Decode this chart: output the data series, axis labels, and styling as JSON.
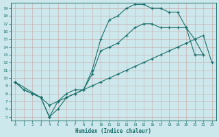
{
  "xlabel": "Humidex (Indice chaleur)",
  "bg_color": "#cde8ec",
  "line_color": "#1a6e6a",
  "grid_color": "#b8d8dc",
  "xlim_min": -0.5,
  "xlim_max": 23.5,
  "ylim_min": 4.5,
  "ylim_max": 19.7,
  "xticks": [
    0,
    1,
    2,
    3,
    4,
    5,
    6,
    7,
    8,
    9,
    10,
    11,
    12,
    13,
    14,
    15,
    16,
    17,
    18,
    19,
    20,
    21,
    22,
    23
  ],
  "yticks": [
    5,
    6,
    7,
    8,
    9,
    10,
    11,
    12,
    13,
    14,
    15,
    16,
    17,
    18,
    19
  ],
  "line1_x": [
    0,
    1,
    2,
    3,
    4,
    5,
    6,
    7,
    8,
    9,
    10,
    11,
    12,
    13,
    14,
    15,
    16,
    17,
    18,
    19,
    20,
    21,
    22
  ],
  "line1_y": [
    9.5,
    8.5,
    8.0,
    7.5,
    5.0,
    6.0,
    7.5,
    8.0,
    8.5,
    11.0,
    15.0,
    17.5,
    18.0,
    19.0,
    19.5,
    19.5,
    19.0,
    19.0,
    18.5,
    18.5,
    16.5,
    13.0,
    13.0
  ],
  "line2_x": [
    0,
    1,
    2,
    3,
    4,
    5,
    6,
    7,
    8,
    9,
    10,
    11,
    12,
    13,
    14,
    15,
    16,
    17,
    18,
    19,
    20,
    21,
    22,
    23
  ],
  "line2_y": [
    9.5,
    8.5,
    8.0,
    7.5,
    5.0,
    7.0,
    7.5,
    8.0,
    8.5,
    9.0,
    9.5,
    10.0,
    10.5,
    11.0,
    11.5,
    12.0,
    12.5,
    13.0,
    13.5,
    14.0,
    14.5,
    15.0,
    15.5,
    12.0
  ],
  "line3_x": [
    0,
    3,
    4,
    5,
    6,
    7,
    8,
    9,
    10,
    11,
    12,
    13,
    14,
    15,
    16,
    17,
    18,
    19,
    20,
    21,
    22
  ],
  "line3_y": [
    9.5,
    7.5,
    6.5,
    7.0,
    8.0,
    8.5,
    8.5,
    10.5,
    13.5,
    14.0,
    14.5,
    15.5,
    16.5,
    17.0,
    17.0,
    16.5,
    16.5,
    16.5,
    16.5,
    15.0,
    13.0
  ]
}
